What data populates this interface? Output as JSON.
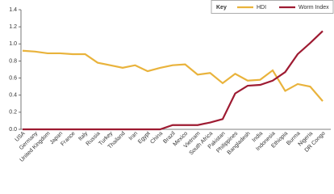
{
  "chart_data": {
    "type": "line",
    "legend_title": "Key",
    "categories": [
      "USA",
      "Germany",
      "United Kingdom",
      "Japan",
      "France",
      "Italy",
      "Russia",
      "Turkey",
      "Thailand",
      "Iran",
      "Egypt",
      "China",
      "Brazil",
      "Mexico",
      "Vietnam",
      "South Africa",
      "Pakistan",
      "Philippines",
      "Bangladesh",
      "India",
      "Indonesia",
      "Ethiopia",
      "Burma",
      "Nigeria",
      "DR Congo"
    ],
    "series": [
      {
        "name": "HDI",
        "color": "#e9b33c",
        "values": [
          0.92,
          0.91,
          0.89,
          0.89,
          0.88,
          0.88,
          0.78,
          0.75,
          0.72,
          0.75,
          0.68,
          0.72,
          0.75,
          0.76,
          0.64,
          0.66,
          0.54,
          0.65,
          0.57,
          0.58,
          0.69,
          0.45,
          0.53,
          0.5,
          0.33
        ]
      },
      {
        "name": "Worm Index",
        "color": "#9e1b32",
        "values": [
          0,
          0,
          0,
          0,
          0,
          0,
          0,
          0,
          0,
          0,
          0,
          0,
          0.05,
          0.05,
          0.05,
          0.08,
          0.12,
          0.42,
          0.51,
          0.52,
          0.57,
          0.67,
          0.88,
          1.01,
          1.15
        ]
      }
    ],
    "ylim": [
      0,
      1.4
    ],
    "yticks": [
      {
        "value": 0,
        "label": "0.0"
      },
      0.2,
      0.4,
      0.6,
      0.8,
      {
        "value": 1,
        "label": "1.0"
      },
      1.2,
      1.4
    ]
  }
}
